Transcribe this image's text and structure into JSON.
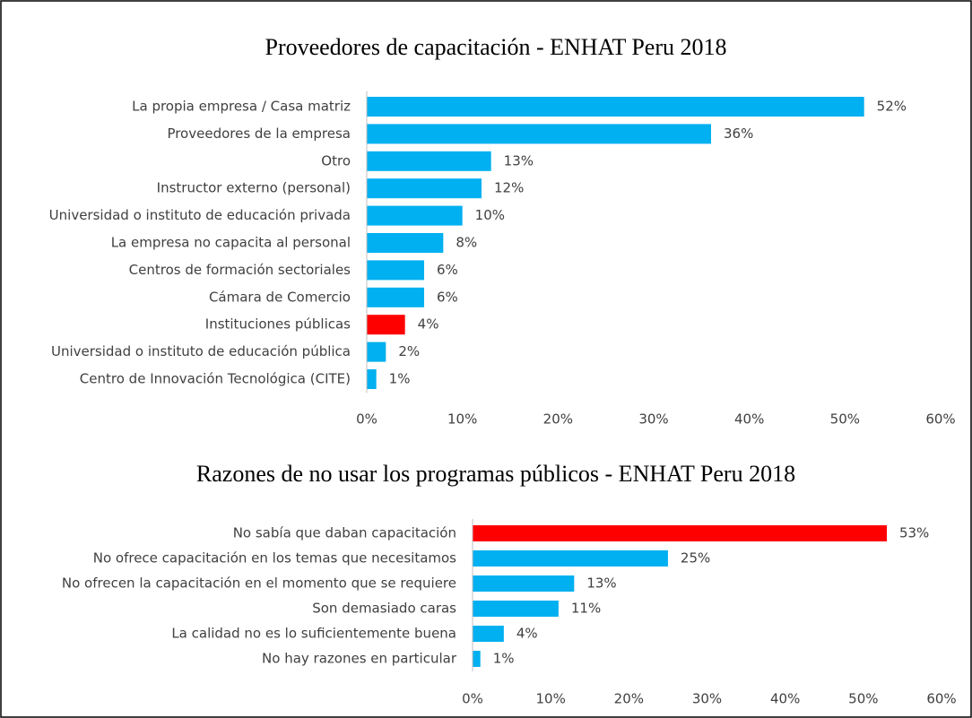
{
  "chart_data": [
    {
      "type": "bar",
      "orientation": "horizontal",
      "title": "Proveedores de capacitación - ENHAT Peru 2018",
      "categories": [
        "La propia empresa / Casa matriz",
        "Proveedores de la empresa",
        "Otro",
        "Instructor externo (personal)",
        "Universidad o instituto de educación privada",
        "La empresa no capacita al personal",
        "Centros de formación sectoriales",
        "Cámara de Comercio",
        "Instituciones públicas",
        "Universidad o instituto de educación pública",
        "Centro de Innovación Tecnológica (CITE)"
      ],
      "values": [
        52,
        36,
        13,
        12,
        10,
        8,
        6,
        6,
        4,
        2,
        1
      ],
      "value_labels": [
        "52%",
        "36%",
        "13%",
        "12%",
        "10%",
        "8%",
        "6%",
        "6%",
        "4%",
        "2%",
        "1%"
      ],
      "colors": [
        "#00b0f0",
        "#00b0f0",
        "#00b0f0",
        "#00b0f0",
        "#00b0f0",
        "#00b0f0",
        "#00b0f0",
        "#00b0f0",
        "#ff0000",
        "#00b0f0",
        "#00b0f0"
      ],
      "xlim": [
        0,
        60
      ],
      "xticks": [
        {
          "value": 0,
          "label": "0%"
        },
        {
          "value": 10,
          "label": "10%"
        },
        {
          "value": 20,
          "label": "20%"
        },
        {
          "value": 30,
          "label": "30%"
        },
        {
          "value": 40,
          "label": "40%"
        },
        {
          "value": 50,
          "label": "50%"
        },
        {
          "value": 60,
          "label": "60%"
        }
      ],
      "grid": false
    },
    {
      "type": "bar",
      "orientation": "horizontal",
      "title": "Razones de no usar los programas públicos - ENHAT Peru 2018",
      "categories": [
        "No sabía que daban capacitación",
        "No ofrece capacitación en los temas que necesitamos",
        "No ofrecen la capacitación en el momento que se requiere",
        "Son demasiado caras",
        "La calidad no es lo suficientemente buena",
        "No hay razones en particular"
      ],
      "values": [
        53,
        25,
        13,
        11,
        4,
        1
      ],
      "value_labels": [
        "53%",
        "25%",
        "13%",
        "11%",
        "4%",
        "1%"
      ],
      "colors": [
        "#ff0000",
        "#00b0f0",
        "#00b0f0",
        "#00b0f0",
        "#00b0f0",
        "#00b0f0"
      ],
      "xlim": [
        0,
        60
      ],
      "xticks": [
        {
          "value": 0,
          "label": "0%"
        },
        {
          "value": 10,
          "label": "10%"
        },
        {
          "value": 20,
          "label": "20%"
        },
        {
          "value": 30,
          "label": "30%"
        },
        {
          "value": 40,
          "label": "40%"
        },
        {
          "value": 50,
          "label": "50%"
        },
        {
          "value": 60,
          "label": "60%"
        }
      ],
      "grid": false
    }
  ]
}
